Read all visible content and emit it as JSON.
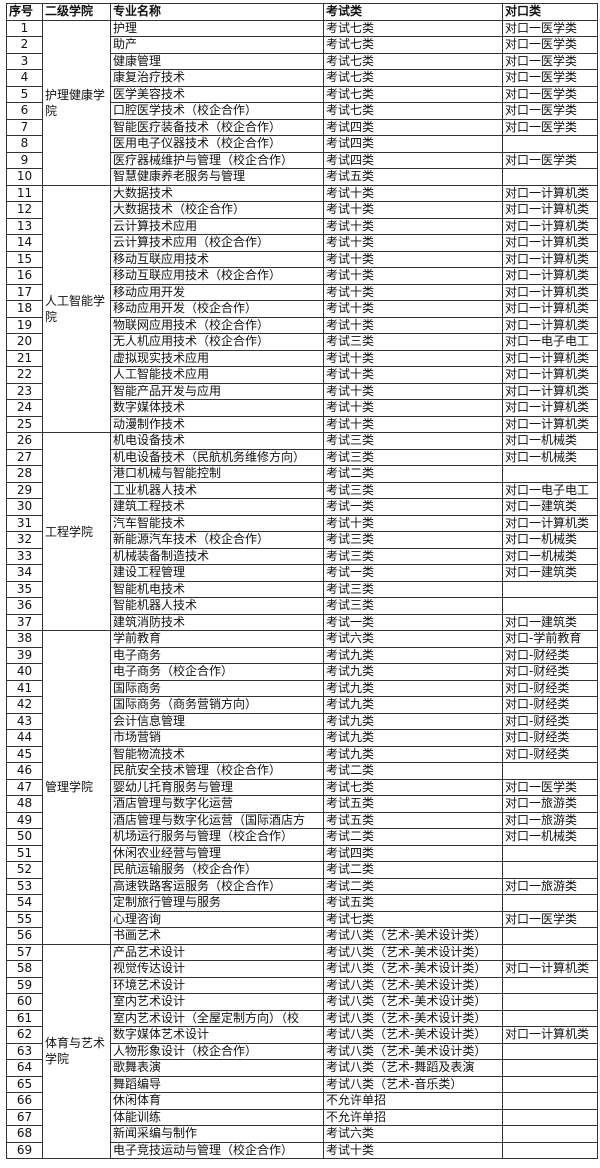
{
  "headers": [
    "序号",
    "二级学院",
    "专业名称",
    "考试类",
    "对口类"
  ],
  "colleges": [
    {
      "name": "护理健康学院",
      "rows": [
        [
          "1",
          "护理",
          "考试七类",
          "对口一医学类"
        ],
        [
          "2",
          "助产",
          "考试七类",
          "对口一医学类"
        ],
        [
          "3",
          "健康管理",
          "考试七类",
          "对口一医学类"
        ],
        [
          "4",
          "康复治疗技术",
          "考试七类",
          "对口一医学类"
        ],
        [
          "5",
          "医学美容技术",
          "考试七类",
          "对口一医学类"
        ],
        [
          "6",
          "口腔医学技术（校企合作）",
          "考试七类",
          "对口一医学类"
        ],
        [
          "7",
          "智能医疗装备技术（校企合作）",
          "考试四类",
          "对口一医学类"
        ],
        [
          "8",
          "医用电子仪器技术（校企合作）",
          "考试四类",
          ""
        ],
        [
          "9",
          "医疗器械维护与管理（校企合作）",
          "考试四类",
          "对口一医学类"
        ],
        [
          "10",
          "智慧健康养老服务与管理",
          "考试五类",
          ""
        ]
      ]
    },
    {
      "name": "人工智能学院",
      "rows": [
        [
          "11",
          "大数据技术",
          "考试十类",
          "对口一计算机类"
        ],
        [
          "12",
          "大数据技术（校企合作）",
          "考试十类",
          "对口一计算机类"
        ],
        [
          "13",
          "云计算技术应用",
          "考试十类",
          "对口一计算机类"
        ],
        [
          "14",
          "云计算技术应用（校企合作）",
          "考试十类",
          "对口一计算机类"
        ],
        [
          "15",
          "移动互联应用技术",
          "考试十类",
          "对口一计算机类"
        ],
        [
          "16",
          "移动互联应用技术（校企合作）",
          "考试十类",
          "对口一计算机类"
        ],
        [
          "17",
          "移动应用开发",
          "考试十类",
          "对口一计算机类"
        ],
        [
          "18",
          "移动应用开发（校企合作）",
          "考试十类",
          "对口一计算机类"
        ],
        [
          "19",
          "物联网应用技术（校企合作）",
          "考试十类",
          "对口一计算机类"
        ],
        [
          "20",
          "无人机应用技术（校企合作）",
          "考试三类",
          "对口一电子电工"
        ],
        [
          "21",
          "虚拟现实技术应用",
          "考试十类",
          "对口一计算机类"
        ],
        [
          "22",
          "人工智能技术应用",
          "考试十类",
          "对口一计算机类"
        ],
        [
          "23",
          "智能产品开发与应用",
          "考试十类",
          "对口一计算机类"
        ],
        [
          "24",
          "数字媒体技术",
          "考试十类",
          "对口一计算机类"
        ],
        [
          "25",
          "动漫制作技术",
          "考试十类",
          "对口一计算机类"
        ]
      ]
    },
    {
      "name": "工程学院",
      "rows": [
        [
          "26",
          "机电设备技术",
          "考试三类",
          "对口一机械类"
        ],
        [
          "27",
          "机电设备技术（民航机务维修方向）",
          "考试三类",
          "对口一机械类"
        ],
        [
          "28",
          "港口机械与智能控制",
          "考试二类",
          ""
        ],
        [
          "29",
          "工业机器人技术",
          "考试三类",
          "对口一电子电工"
        ],
        [
          "30",
          "建筑工程技术",
          "考试一类",
          "对口一建筑类"
        ],
        [
          "31",
          "汽车智能技术",
          "考试十类",
          "对口一计算机类"
        ],
        [
          "32",
          "新能源汽车技术（校企合作）",
          "考试三类",
          "对口一机械类"
        ],
        [
          "33",
          "机械装备制造技术",
          "考试三类",
          "对口一机械类"
        ],
        [
          "34",
          "建设工程管理",
          "考试一类",
          "对口一建筑类"
        ],
        [
          "35",
          "智能机电技术",
          "考试三类",
          ""
        ],
        [
          "36",
          "智能机器人技术",
          "考试三类",
          ""
        ],
        [
          "37",
          "建筑消防技术",
          "考试一类",
          "对口一建筑类"
        ]
      ]
    },
    {
      "name": "管理学院",
      "rows": [
        [
          "38",
          "学前教育",
          "考试六类",
          "对口-学前教育"
        ],
        [
          "39",
          "电子商务",
          "考试九类",
          "对口-财经类"
        ],
        [
          "40",
          "电子商务（校企合作）",
          "考试九类",
          "对口-财经类"
        ],
        [
          "41",
          "国际商务",
          "考试九类",
          "对口-财经类"
        ],
        [
          "42",
          "国际商务（商务营销方向）",
          "考试九类",
          "对口-财经类"
        ],
        [
          "43",
          "会计信息管理",
          "考试九类",
          "对口-财经类"
        ],
        [
          "44",
          "市场营销",
          "考试九类",
          "对口-财经类"
        ],
        [
          "45",
          "智能物流技术",
          "考试九类",
          "对口-财经类"
        ],
        [
          "46",
          "民航安全技术管理（校企合作）",
          "考试二类",
          ""
        ],
        [
          "47",
          "婴幼儿托育服务与管理",
          "考试七类",
          "对口一医学类"
        ],
        [
          "48",
          "酒店管理与数字化运营",
          "考试五类",
          "对口一旅游类"
        ],
        [
          "49",
          "酒店管理与数字化运营（国际酒店方",
          "考试五类",
          "对口一旅游类"
        ],
        [
          "50",
          "机场运行服务与管理（校企合作）",
          "考试二类",
          "对口一机械类"
        ],
        [
          "51",
          "休闲农业经营与管理",
          "考试四类",
          ""
        ],
        [
          "52",
          "民航运输服务（校企合作）",
          "考试二类",
          ""
        ],
        [
          "53",
          "高速铁路客运服务（校企合作）",
          "考试二类",
          "对口一旅游类"
        ],
        [
          "54",
          "定制旅行管理与服务",
          "考试五类",
          ""
        ],
        [
          "55",
          "心理咨询",
          "考试七类",
          "对口一医学类"
        ],
        [
          "56",
          "书画艺术",
          "考试八类（艺术-美术设计类）",
          ""
        ]
      ]
    },
    {
      "name": "体育与艺术学院",
      "rows": [
        [
          "57",
          "产品艺术设计",
          "考试八类（艺术-美术设计类）",
          ""
        ],
        [
          "58",
          "视觉传达设计",
          "考试八类（艺术-美术设计类）",
          "对口一计算机类"
        ],
        [
          "59",
          "环境艺术设计",
          "考试八类（艺术-美术设计类）",
          ""
        ],
        [
          "60",
          "室内艺术设计",
          "考试八类（艺术-美术设计类）",
          ""
        ],
        [
          "61",
          "室内艺术设计（全屋定制方向）（校",
          "考试八类（艺术-美术设计类）",
          ""
        ],
        [
          "62",
          "数字媒体艺术设计",
          "考试八类（艺术-美术设计类）",
          "对口一计算机类"
        ],
        [
          "63",
          "人物形象设计（校企合作）",
          "考试八类（艺术-美术设计类）",
          ""
        ],
        [
          "64",
          "歌舞表演",
          "考试八类（艺术-舞蹈及表演",
          ""
        ],
        [
          "65",
          "舞蹈编导",
          "考试八类（艺术-音乐类）",
          ""
        ],
        [
          "66",
          "休闲体育",
          "不允许单招",
          ""
        ],
        [
          "67",
          "体能训练",
          "不允许单招",
          ""
        ],
        [
          "68",
          "新闻采编与制作",
          "考试六类",
          ""
        ],
        [
          "69",
          "电子竞技运动与管理（校企合作）",
          "考试十类",
          ""
        ]
      ]
    }
  ]
}
